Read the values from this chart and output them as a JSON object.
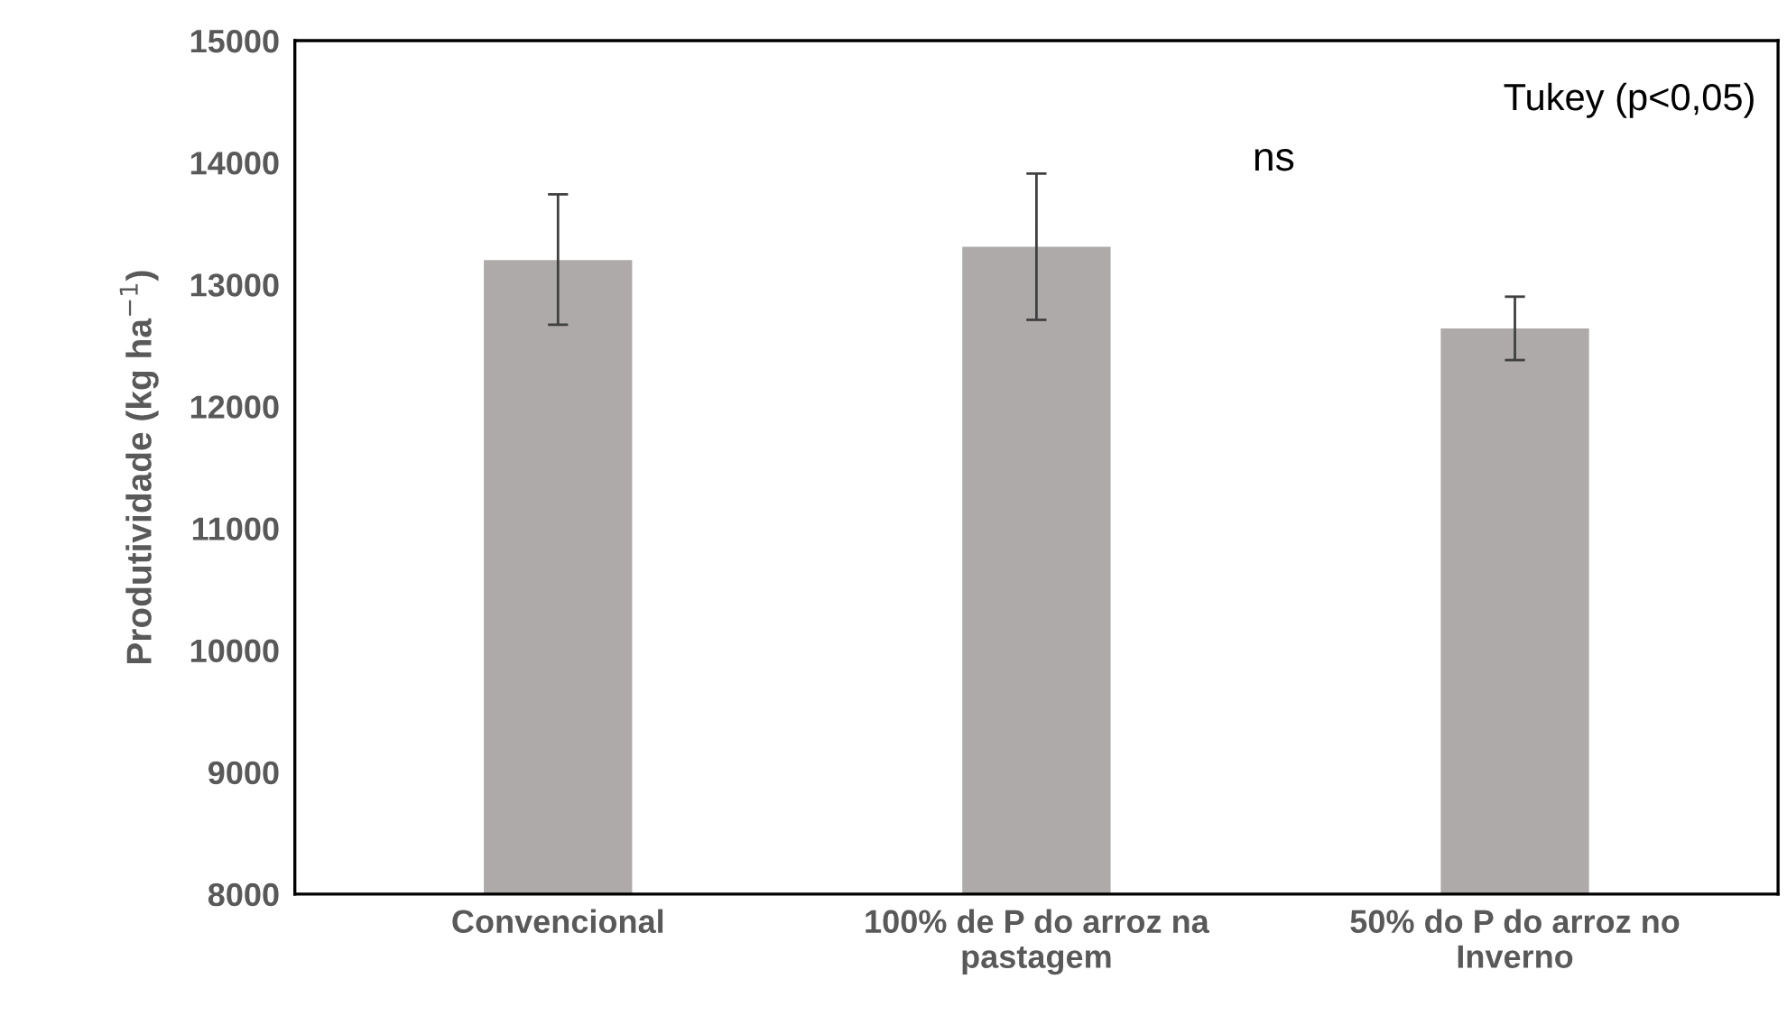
{
  "chart_data": {
    "type": "bar",
    "ylabel": "Produtividade (kg ha$^{−1}$)",
    "categories": [
      "Convencional",
      "100% de P do arroz na\npastagem",
      "50% do P do arroz no\nInverno"
    ],
    "values": [
      13200,
      13310,
      12640
    ],
    "errors": [
      [
        12670,
        13740
      ],
      [
        12710,
        13910
      ],
      [
        12380,
        12900
      ]
    ],
    "color": "#aeaaaa",
    "ylim": [
      8000,
      15000
    ],
    "yticks": [
      8000,
      9000,
      10000,
      11000,
      12000,
      13000,
      14000,
      15000
    ],
    "grid": false,
    "legend": false,
    "annotations": [
      "ns",
      "Tukey (p<0,05)"
    ]
  }
}
